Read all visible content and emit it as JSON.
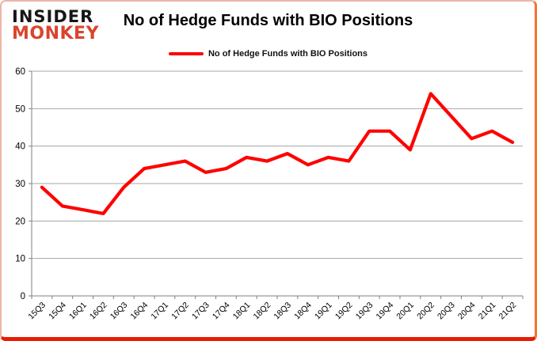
{
  "page": {
    "background_color": "#ffffff",
    "border_glow_color": "#ea1c04"
  },
  "header": {
    "logo": {
      "line1": "INSIDER",
      "line2": "MONKEY",
      "line1_color": "#161616",
      "line2_color": "#d9452e"
    },
    "title": "No of Hedge Funds with BIO Positions"
  },
  "legend": {
    "label": "No of Hedge Funds with BIO Positions",
    "swatch_color": "#ff0000"
  },
  "chart_data": {
    "type": "line",
    "title": "No of Hedge Funds with BIO Positions",
    "xlabel": "",
    "ylabel": "",
    "categories": [
      "15Q3",
      "15Q4",
      "16Q1",
      "16Q2",
      "16Q3",
      "16Q4",
      "17Q1",
      "17Q2",
      "17Q3",
      "17Q4",
      "18Q1",
      "18Q2",
      "18Q3",
      "18Q4",
      "19Q1",
      "19Q2",
      "19Q3",
      "19Q4",
      "20Q1",
      "20Q2",
      "20Q3",
      "20Q4",
      "21Q1",
      "21Q2"
    ],
    "series": [
      {
        "name": "No of Hedge Funds with BIO Positions",
        "color": "#ff0000",
        "values": [
          29,
          24,
          23,
          22,
          29,
          34,
          35,
          36,
          33,
          34,
          37,
          36,
          38,
          35,
          37,
          36,
          44,
          44,
          39,
          54,
          48,
          42,
          44,
          41
        ]
      }
    ],
    "ylim": [
      0,
      60
    ],
    "yticks": [
      0,
      10,
      20,
      30,
      40,
      50,
      60
    ],
    "grid": "horizontal",
    "gridline_color": "#a6a6a6",
    "axis_color": "#808080",
    "tick_label_color": "#000000",
    "legend_position": "top"
  }
}
